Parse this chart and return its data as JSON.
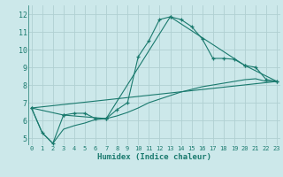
{
  "xlabel": "Humidex (Indice chaleur)",
  "background_color": "#cce8ea",
  "grid_color": "#b0d0d2",
  "line_color": "#1a7a6e",
  "x_ticks": [
    0,
    1,
    2,
    3,
    4,
    5,
    6,
    7,
    8,
    9,
    10,
    11,
    12,
    13,
    14,
    15,
    16,
    17,
    18,
    19,
    20,
    21,
    22,
    23
  ],
  "y_ticks": [
    5,
    6,
    7,
    8,
    9,
    10,
    11,
    12
  ],
  "xlim": [
    -0.3,
    23.3
  ],
  "ylim": [
    4.6,
    12.5
  ],
  "line1_x": [
    0,
    1,
    2,
    3,
    4,
    5,
    6,
    7,
    8,
    9,
    10,
    11,
    12,
    13,
    14,
    15,
    16,
    17,
    18,
    19,
    20,
    21,
    22,
    23
  ],
  "line1_y": [
    6.7,
    5.3,
    4.7,
    6.3,
    6.4,
    6.4,
    6.1,
    6.1,
    6.6,
    7.0,
    9.6,
    10.5,
    11.7,
    11.85,
    11.7,
    11.3,
    10.6,
    9.5,
    9.5,
    9.45,
    9.1,
    9.0,
    8.3,
    8.2
  ],
  "line2_x": [
    0,
    1,
    2,
    3,
    4,
    5,
    6,
    7,
    8,
    9,
    10,
    11,
    12,
    13,
    14,
    15,
    16,
    17,
    18,
    19,
    20,
    21,
    22,
    23
  ],
  "line2_y": [
    6.7,
    5.3,
    4.7,
    5.5,
    5.7,
    5.85,
    6.05,
    6.1,
    6.25,
    6.45,
    6.7,
    7.0,
    7.2,
    7.4,
    7.6,
    7.75,
    7.9,
    8.0,
    8.1,
    8.2,
    8.3,
    8.35,
    8.2,
    8.2
  ],
  "line3_x": [
    0,
    3,
    7,
    13,
    20,
    23
  ],
  "line3_y": [
    6.7,
    6.3,
    6.1,
    11.85,
    9.1,
    8.2
  ],
  "line4_x": [
    0,
    23
  ],
  "line4_y": [
    6.7,
    8.2
  ]
}
